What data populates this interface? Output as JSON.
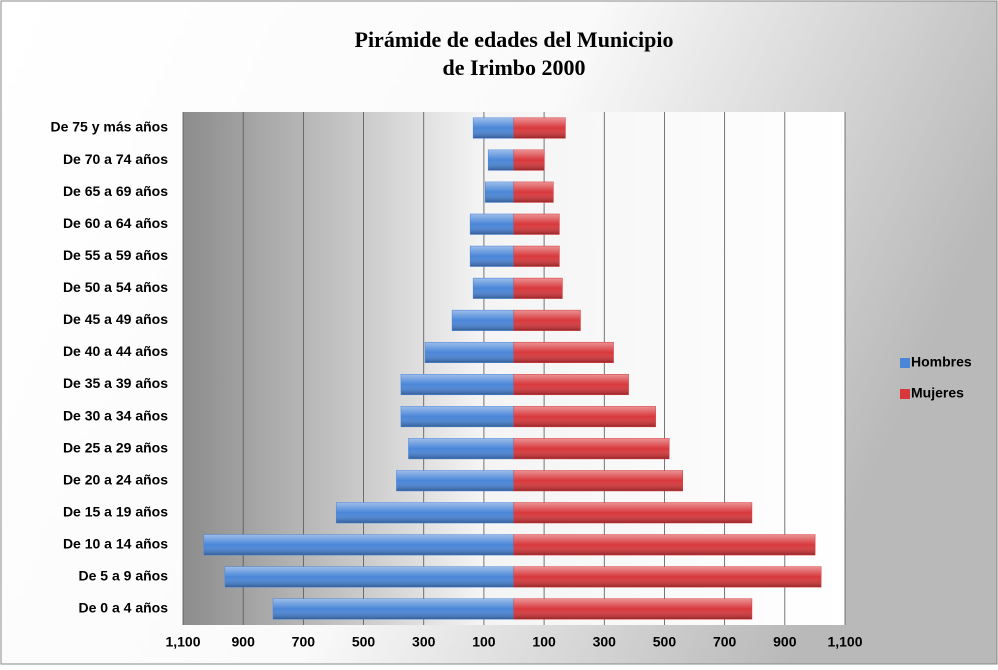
{
  "chart_data": {
    "type": "pyramid",
    "title": [
      "Pirámide de edades del Municipio",
      "de Irimbo 2000"
    ],
    "categories": [
      "De 0 a 4 años",
      "De 5 a 9 años",
      "De 10 a 14 años",
      "De 15 a 19 años",
      "De 20 a 24 años",
      "De 25 a 29 años",
      "De 30 a 34 años",
      "De 35 a 39 años",
      "De 40 a 44 años",
      "De 45 a 49 años",
      "De 50 a 54 años",
      "De 55 a 59 años",
      "De 60 a 64 años",
      "De 65 a 69 años",
      "De 70 a 74 años",
      "De 75 y más años"
    ],
    "series": [
      {
        "name": "Hombres",
        "color": "#4a86d8",
        "values": [
          -800,
          -960,
          -1030,
          -590,
          -390,
          -350,
          -375,
          -375,
          -295,
          -205,
          -135,
          -145,
          -145,
          -95,
          -85,
          -135
        ]
      },
      {
        "name": "Mujeres",
        "color": "#d8383c",
        "values": [
          790,
          1020,
          1000,
          790,
          560,
          515,
          470,
          380,
          330,
          220,
          160,
          150,
          150,
          130,
          100,
          170
        ]
      }
    ],
    "xlim": [
      -1100,
      1100
    ],
    "xticks": [
      {
        "value": -1100,
        "label": "1,100"
      },
      {
        "value": -900,
        "label": "900"
      },
      {
        "value": -700,
        "label": "700"
      },
      {
        "value": -500,
        "label": "500"
      },
      {
        "value": -300,
        "label": "300"
      },
      {
        "value": -100,
        "label": "100"
      },
      100,
      300,
      500,
      700,
      900,
      {
        "value": 1100,
        "label": "1,100"
      }
    ],
    "grid": true,
    "legend": "right"
  }
}
